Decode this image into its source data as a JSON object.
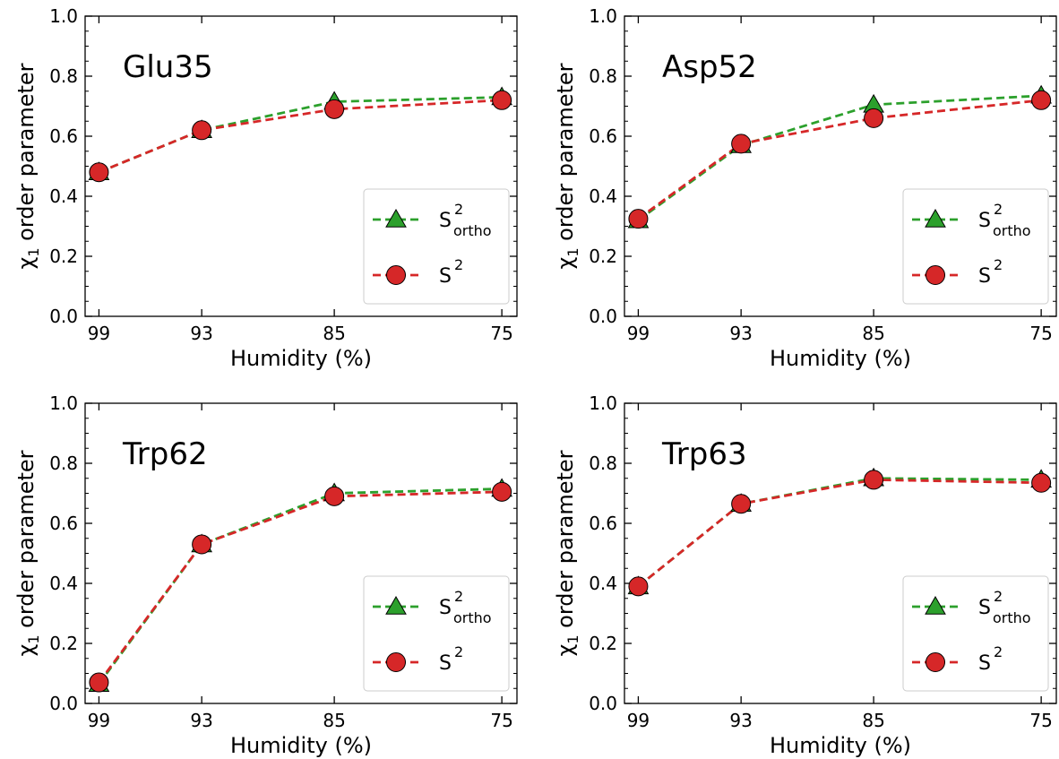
{
  "chart_data": [
    {
      "type": "line",
      "title": "Glu35",
      "xlabel": "Humidity (%)",
      "ylabel": "order parameter",
      "ylabel_symbol": "χ",
      "ylabel_subscript": "1",
      "categories": [
        "99",
        "93",
        "85",
        "75"
      ],
      "ylim": [
        0.0,
        1.0
      ],
      "yticks": [
        "0.0",
        "0.2",
        "0.4",
        "0.6",
        "0.8",
        "1.0"
      ],
      "legend_position": "lower-right",
      "series": [
        {
          "name": "S",
          "name_sup": "2",
          "name_sub": "ortho",
          "marker": "triangle",
          "color": "#2ca02c",
          "values": [
            0.48,
            0.62,
            0.715,
            0.73
          ]
        },
        {
          "name": "S",
          "name_sup": "2",
          "name_sub": "",
          "marker": "circle",
          "color": "#d62728",
          "values": [
            0.48,
            0.62,
            0.69,
            0.72
          ]
        }
      ]
    },
    {
      "type": "line",
      "title": "Asp52",
      "xlabel": "Humidity (%)",
      "ylabel": "order parameter",
      "ylabel_symbol": "χ",
      "ylabel_subscript": "1",
      "categories": [
        "99",
        "93",
        "85",
        "75"
      ],
      "ylim": [
        0.0,
        1.0
      ],
      "yticks": [
        "0.0",
        "0.2",
        "0.4",
        "0.6",
        "0.8",
        "1.0"
      ],
      "legend_position": "lower-right",
      "series": [
        {
          "name": "S",
          "name_sup": "2",
          "name_sub": "ortho",
          "marker": "triangle",
          "color": "#2ca02c",
          "values": [
            0.32,
            0.57,
            0.705,
            0.735
          ]
        },
        {
          "name": "S",
          "name_sup": "2",
          "name_sub": "",
          "marker": "circle",
          "color": "#d62728",
          "values": [
            0.325,
            0.575,
            0.66,
            0.72
          ]
        }
      ]
    },
    {
      "type": "line",
      "title": "Trp62",
      "xlabel": "Humidity (%)",
      "ylabel": "order parameter",
      "ylabel_symbol": "χ",
      "ylabel_subscript": "1",
      "categories": [
        "99",
        "93",
        "85",
        "75"
      ],
      "ylim": [
        0.0,
        1.0
      ],
      "yticks": [
        "0.0",
        "0.2",
        "0.4",
        "0.6",
        "0.8",
        "1.0"
      ],
      "legend_position": "lower-right",
      "series": [
        {
          "name": "S",
          "name_sup": "2",
          "name_sub": "ortho",
          "marker": "triangle",
          "color": "#2ca02c",
          "values": [
            0.065,
            0.53,
            0.7,
            0.715
          ]
        },
        {
          "name": "S",
          "name_sup": "2",
          "name_sub": "",
          "marker": "circle",
          "color": "#d62728",
          "values": [
            0.07,
            0.53,
            0.69,
            0.705
          ]
        }
      ]
    },
    {
      "type": "line",
      "title": "Trp63",
      "xlabel": "Humidity (%)",
      "ylabel": "order parameter",
      "ylabel_symbol": "χ",
      "ylabel_subscript": "1",
      "categories": [
        "99",
        "93",
        "85",
        "75"
      ],
      "ylim": [
        0.0,
        1.0
      ],
      "yticks": [
        "0.0",
        "0.2",
        "0.4",
        "0.6",
        "0.8",
        "1.0"
      ],
      "legend_position": "lower-right",
      "series": [
        {
          "name": "S",
          "name_sup": "2",
          "name_sub": "ortho",
          "marker": "triangle",
          "color": "#2ca02c",
          "values": [
            0.39,
            0.665,
            0.75,
            0.745
          ]
        },
        {
          "name": "S",
          "name_sup": "2",
          "name_sub": "",
          "marker": "circle",
          "color": "#d62728",
          "values": [
            0.39,
            0.665,
            0.745,
            0.735
          ]
        }
      ]
    }
  ]
}
